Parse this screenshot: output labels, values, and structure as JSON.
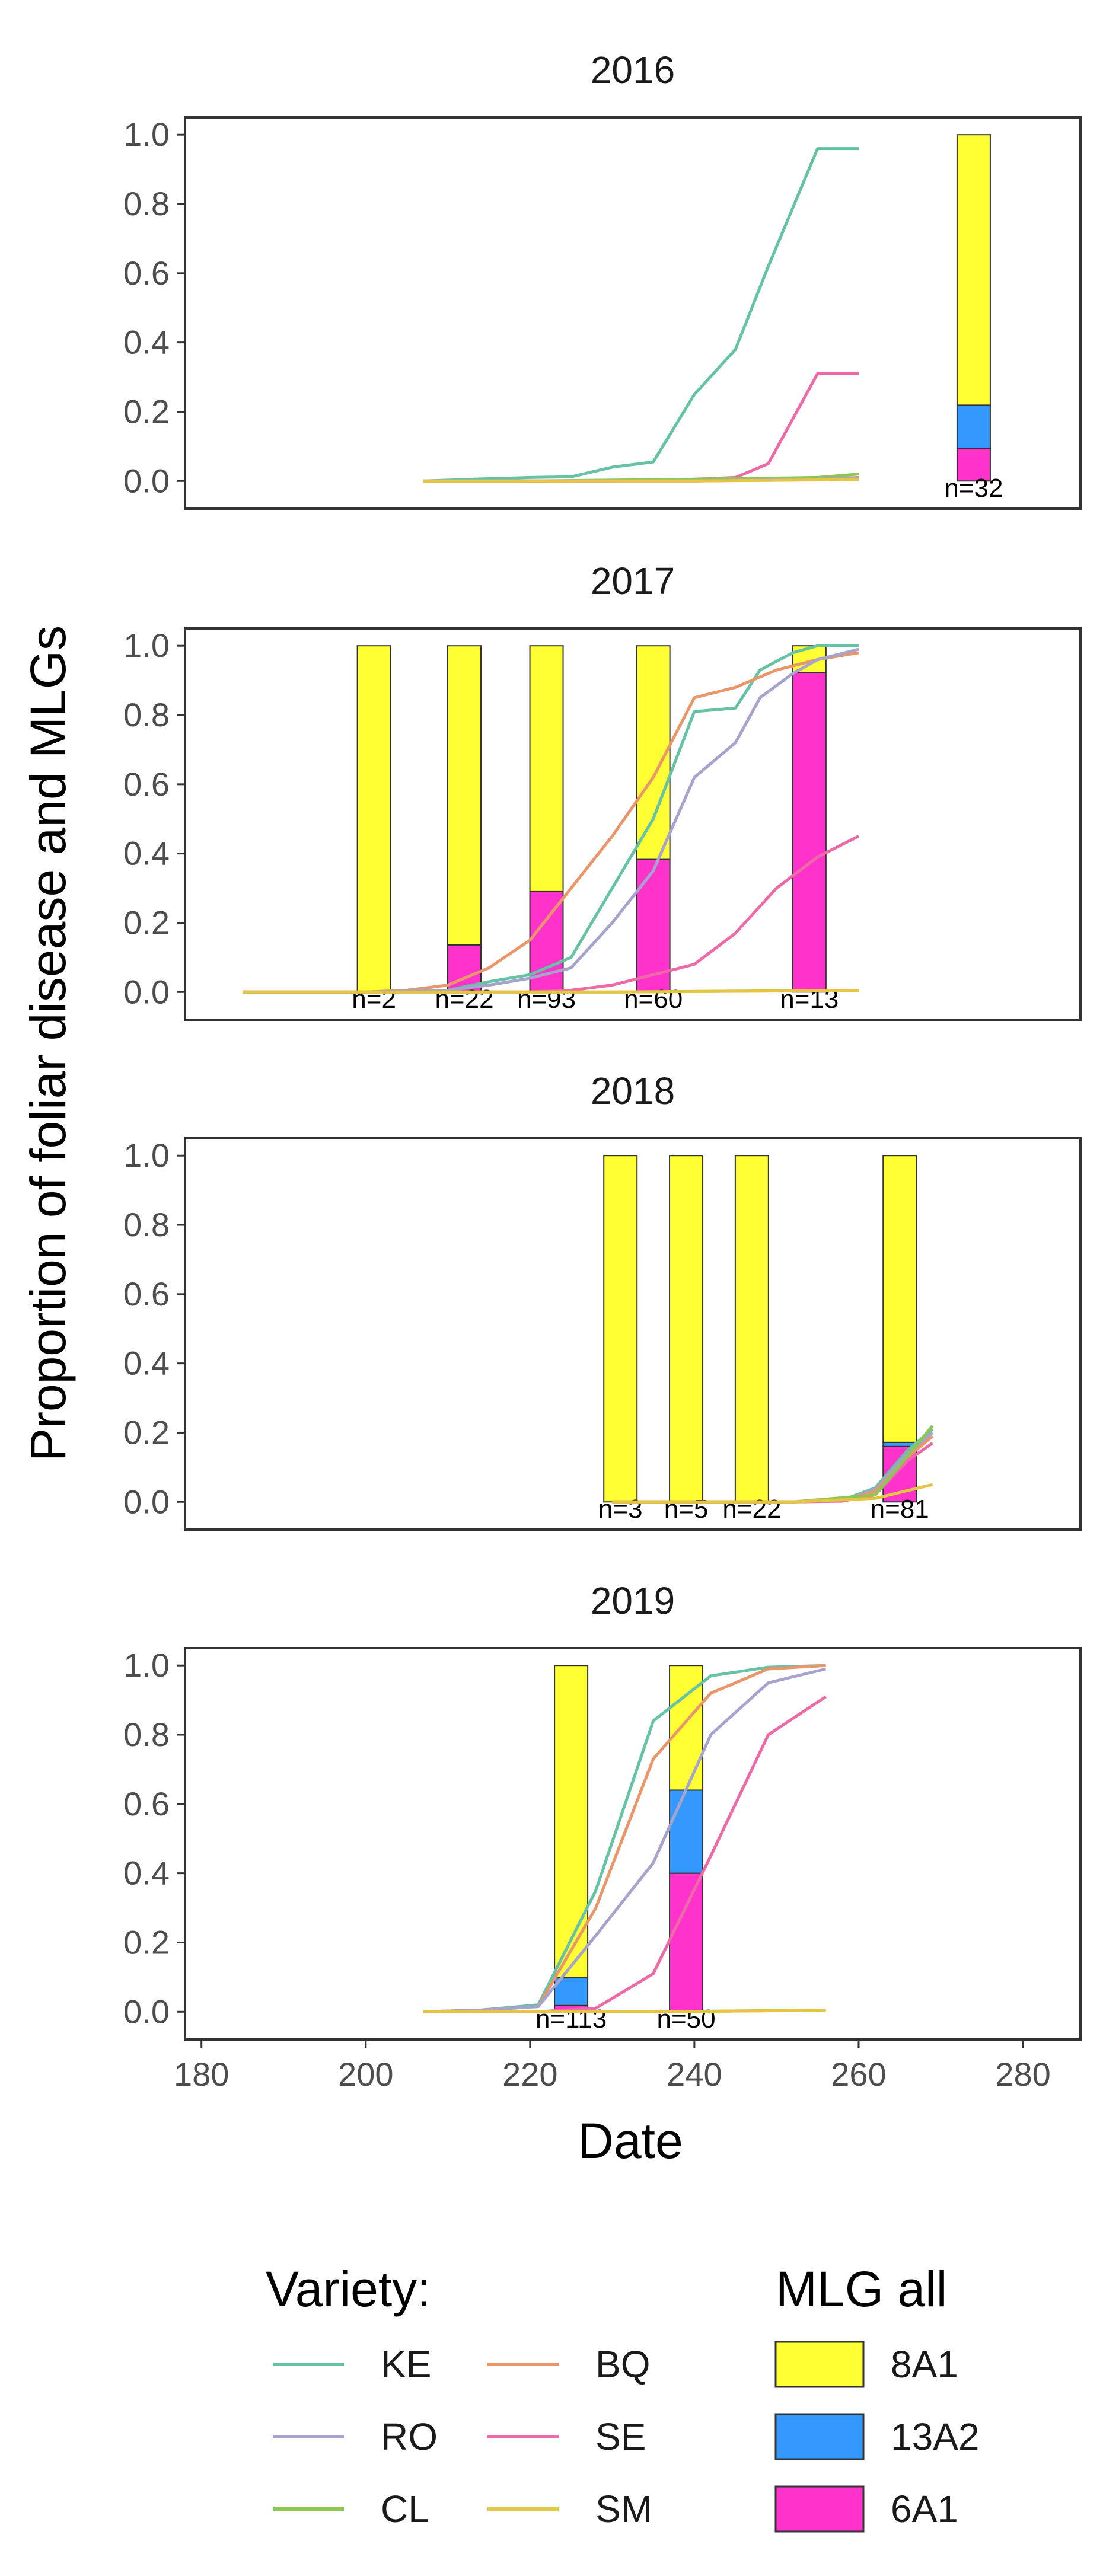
{
  "figure": {
    "xlabel": "Date",
    "ylabel": "Proportion of foliar disease and MLGs"
  },
  "legend": {
    "variety_title": "Variety:",
    "mlg_title": "MLG all"
  },
  "colors": {
    "KE": "#66c2a5",
    "BQ": "#e8966a",
    "RO": "#a6a3cc",
    "SE": "#ee6aa7",
    "CL": "#8cc756",
    "SM": "#e5c542",
    "8A1": "#ffff33",
    "13A2": "#3399ff",
    "6A1": "#ff33cc"
  },
  "chart_data": [
    {
      "type": "line",
      "title": "2016",
      "xlim": [
        178,
        287
      ],
      "ylim": [
        -0.08,
        1.05
      ],
      "yticks": [
        0.0,
        0.2,
        0.4,
        0.6,
        0.8,
        1.0
      ],
      "xticks": [
        180,
        200,
        220,
        240,
        260,
        280
      ],
      "series": [
        {
          "name": "KE",
          "x": [
            207,
            213,
            220,
            225,
            230,
            235,
            240,
            245,
            249,
            255,
            260
          ],
          "y": [
            0,
            0.005,
            0.01,
            0.012,
            0.04,
            0.055,
            0.25,
            0.38,
            0.62,
            0.96,
            0.96
          ]
        },
        {
          "name": "SE",
          "x": [
            207,
            213,
            220,
            225,
            230,
            235,
            240,
            245,
            249,
            255,
            260
          ],
          "y": [
            0,
            0,
            0,
            0,
            0,
            0.002,
            0.005,
            0.01,
            0.05,
            0.31,
            0.31
          ]
        },
        {
          "name": "CL",
          "x": [
            207,
            220,
            240,
            255,
            260
          ],
          "y": [
            0,
            0,
            0.005,
            0.01,
            0.02
          ]
        },
        {
          "name": "BQ",
          "x": [
            207,
            220,
            240,
            255,
            260
          ],
          "y": [
            0,
            0,
            0,
            0.005,
            0.01
          ]
        },
        {
          "name": "RO",
          "x": [
            207,
            220,
            240,
            255,
            260
          ],
          "y": [
            0,
            0,
            0,
            0.005,
            0.008
          ]
        },
        {
          "name": "SM",
          "x": [
            207,
            220,
            240,
            255,
            260
          ],
          "y": [
            0,
            0,
            0,
            0.003,
            0.005
          ]
        }
      ],
      "bars": [
        {
          "x": 274,
          "n_label": "n=32",
          "segments": {
            "6A1": 0.094,
            "13A2": 0.125,
            "8A1": 0.781
          }
        }
      ]
    },
    {
      "type": "line",
      "title": "2017",
      "xlim": [
        178,
        287
      ],
      "ylim": [
        -0.08,
        1.05
      ],
      "yticks": [
        0.0,
        0.2,
        0.4,
        0.6,
        0.8,
        1.0
      ],
      "xticks": [
        180,
        200,
        220,
        240,
        260,
        280
      ],
      "series": [
        {
          "name": "KE",
          "x": [
            185,
            200,
            210,
            215,
            220,
            225,
            230,
            235,
            240,
            245,
            248,
            252,
            255,
            260
          ],
          "y": [
            0,
            0,
            0.005,
            0.03,
            0.05,
            0.1,
            0.3,
            0.5,
            0.81,
            0.82,
            0.93,
            0.98,
            1.0,
            1.0
          ]
        },
        {
          "name": "BQ",
          "x": [
            185,
            200,
            205,
            210,
            215,
            220,
            225,
            230,
            235,
            240,
            245,
            250,
            255,
            260
          ],
          "y": [
            0,
            0,
            0.005,
            0.02,
            0.07,
            0.15,
            0.3,
            0.45,
            0.62,
            0.85,
            0.88,
            0.93,
            0.96,
            0.98
          ]
        },
        {
          "name": "RO",
          "x": [
            185,
            200,
            210,
            215,
            220,
            225,
            230,
            235,
            240,
            245,
            248,
            252,
            255,
            260
          ],
          "y": [
            0,
            0,
            0.005,
            0.02,
            0.04,
            0.07,
            0.2,
            0.35,
            0.62,
            0.72,
            0.85,
            0.92,
            0.96,
            0.99
          ]
        },
        {
          "name": "SE",
          "x": [
            185,
            200,
            220,
            225,
            230,
            235,
            240,
            245,
            250,
            255,
            260
          ],
          "y": [
            0,
            0,
            0,
            0.005,
            0.02,
            0.05,
            0.08,
            0.17,
            0.3,
            0.39,
            0.45
          ]
        },
        {
          "name": "CL",
          "x": [
            185,
            230,
            260
          ],
          "y": [
            0,
            0,
            0.005
          ]
        },
        {
          "name": "SM",
          "x": [
            185,
            230,
            260
          ],
          "y": [
            0,
            0,
            0.004
          ]
        }
      ],
      "bars": [
        {
          "x": 201,
          "n_label": "n=2",
          "segments": {
            "6A1": 0.0,
            "13A2": 0.0,
            "8A1": 1.0
          }
        },
        {
          "x": 212,
          "n_label": "n=22",
          "segments": {
            "6A1": 0.136,
            "13A2": 0.0,
            "8A1": 0.864
          }
        },
        {
          "x": 222,
          "n_label": "n=93",
          "segments": {
            "6A1": 0.29,
            "13A2": 0.0,
            "8A1": 0.71
          }
        },
        {
          "x": 235,
          "n_label": "n=60",
          "segments": {
            "6A1": 0.383,
            "13A2": 0.0,
            "8A1": 0.617
          }
        },
        {
          "x": 254,
          "n_label": "n=13",
          "segments": {
            "6A1": 0.923,
            "13A2": 0.0,
            "8A1": 0.077
          }
        }
      ]
    },
    {
      "type": "line",
      "title": "2018",
      "xlim": [
        178,
        287
      ],
      "ylim": [
        -0.08,
        1.05
      ],
      "yticks": [
        0.0,
        0.2,
        0.4,
        0.6,
        0.8,
        1.0
      ],
      "xticks": [
        180,
        200,
        220,
        240,
        260,
        280
      ],
      "series": [
        {
          "name": "KE",
          "x": [
            230,
            240,
            252,
            258,
            262,
            266,
            269
          ],
          "y": [
            0,
            0,
            0,
            0.005,
            0.04,
            0.15,
            0.21
          ]
        },
        {
          "name": "RO",
          "x": [
            230,
            240,
            252,
            258,
            262,
            266,
            269
          ],
          "y": [
            0,
            0,
            0,
            0.004,
            0.035,
            0.14,
            0.2
          ]
        },
        {
          "name": "BQ",
          "x": [
            230,
            240,
            252,
            258,
            262,
            266,
            269
          ],
          "y": [
            0,
            0,
            0,
            0.004,
            0.03,
            0.13,
            0.19
          ]
        },
        {
          "name": "SE",
          "x": [
            230,
            252,
            258,
            262,
            266,
            269
          ],
          "y": [
            0,
            0,
            0.002,
            0.02,
            0.12,
            0.17
          ]
        },
        {
          "name": "CL",
          "x": [
            230,
            252,
            262,
            269
          ],
          "y": [
            0,
            0,
            0.02,
            0.22
          ]
        },
        {
          "name": "SM",
          "x": [
            230,
            252,
            262,
            269
          ],
          "y": [
            0,
            0,
            0.01,
            0.05
          ]
        }
      ],
      "bars": [
        {
          "x": 231,
          "n_label": "n=3",
          "segments": {
            "6A1": 0.0,
            "13A2": 0.0,
            "8A1": 1.0
          }
        },
        {
          "x": 239,
          "n_label": "n=5",
          "segments": {
            "6A1": 0.0,
            "13A2": 0.0,
            "8A1": 1.0
          }
        },
        {
          "x": 247,
          "n_label": "n=22",
          "segments": {
            "6A1": 0.0,
            "13A2": 0.0,
            "8A1": 1.0
          }
        },
        {
          "x": 265,
          "n_label": "n=81",
          "segments": {
            "6A1": 0.16,
            "13A2": 0.012,
            "8A1": 0.828
          }
        }
      ]
    },
    {
      "type": "line",
      "title": "2019",
      "xlim": [
        178,
        287
      ],
      "ylim": [
        -0.08,
        1.05
      ],
      "yticks": [
        0.0,
        0.2,
        0.4,
        0.6,
        0.8,
        1.0
      ],
      "xticks": [
        180,
        200,
        220,
        240,
        260,
        280
      ],
      "series": [
        {
          "name": "KE",
          "x": [
            207,
            214,
            221,
            228,
            235,
            242,
            249,
            256
          ],
          "y": [
            0,
            0.005,
            0.02,
            0.35,
            0.84,
            0.97,
            0.995,
            1.0
          ]
        },
        {
          "name": "BQ",
          "x": [
            207,
            214,
            221,
            228,
            235,
            242,
            249,
            256
          ],
          "y": [
            0,
            0.005,
            0.015,
            0.3,
            0.73,
            0.92,
            0.99,
            1.0
          ]
        },
        {
          "name": "RO",
          "x": [
            207,
            214,
            221,
            228,
            235,
            242,
            249,
            256
          ],
          "y": [
            0,
            0.004,
            0.015,
            0.22,
            0.43,
            0.8,
            0.95,
            0.99
          ]
        },
        {
          "name": "SE",
          "x": [
            207,
            221,
            228,
            235,
            242,
            249,
            256
          ],
          "y": [
            0,
            0,
            0.01,
            0.11,
            0.45,
            0.8,
            0.91
          ]
        },
        {
          "name": "CL",
          "x": [
            207,
            235,
            256
          ],
          "y": [
            0,
            0,
            0.005
          ]
        },
        {
          "name": "SM",
          "x": [
            207,
            235,
            256
          ],
          "y": [
            0,
            0,
            0.004
          ]
        }
      ],
      "bars": [
        {
          "x": 225,
          "n_label": "n=113",
          "segments": {
            "6A1": 0.018,
            "13A2": 0.08,
            "8A1": 0.902
          }
        },
        {
          "x": 239,
          "n_label": "n=50",
          "segments": {
            "6A1": 0.4,
            "13A2": 0.24,
            "8A1": 0.36
          }
        }
      ]
    }
  ],
  "legend_items": {
    "variety": [
      {
        "key": "KE",
        "label": "KE"
      },
      {
        "key": "BQ",
        "label": "BQ"
      },
      {
        "key": "RO",
        "label": "RO"
      },
      {
        "key": "SE",
        "label": "SE"
      },
      {
        "key": "CL",
        "label": "CL"
      },
      {
        "key": "SM",
        "label": "SM"
      }
    ],
    "mlg": [
      {
        "key": "8A1",
        "label": "8A1"
      },
      {
        "key": "13A2",
        "label": "13A2"
      },
      {
        "key": "6A1",
        "label": "6A1"
      }
    ]
  }
}
